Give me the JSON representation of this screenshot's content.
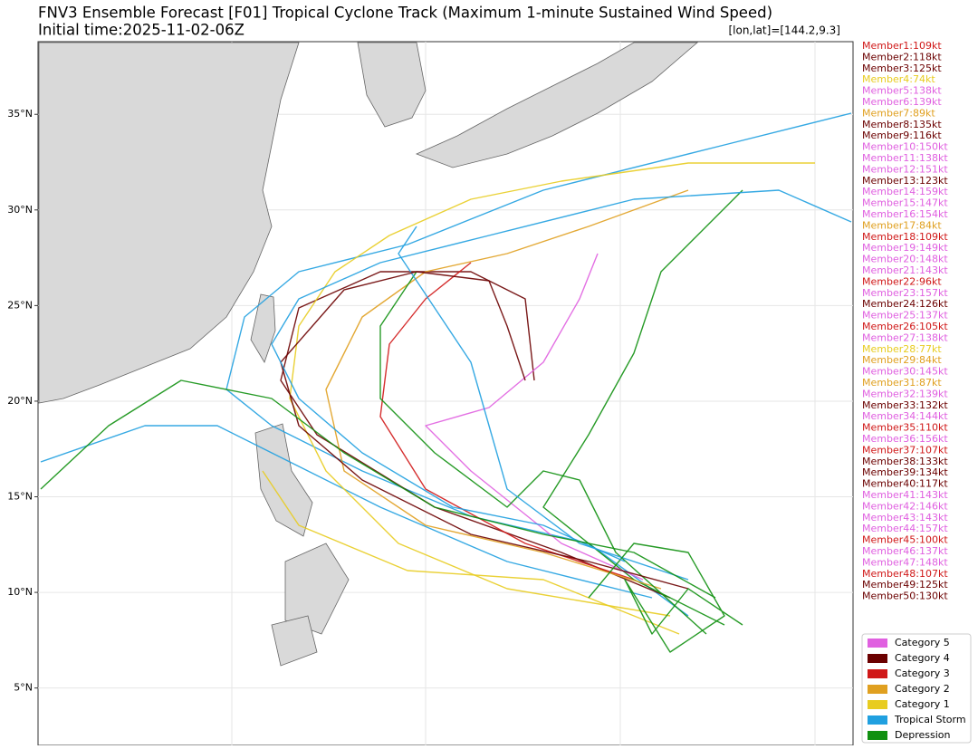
{
  "chart_data": {
    "type": "track-map",
    "title": "FNV3 Ensemble Forecast [F01] Tropical Cyclone Track (Maximum 1-minute Sustained Wind Speed)",
    "subtitle": "Initial time:2025-11-02-06Z",
    "annotation": "[lon,lat]=[144.2,9.3]",
    "ylim": [
      2.0,
      38.8
    ],
    "yticks": [
      {
        "value": 5,
        "label": "5°N"
      },
      {
        "value": 10,
        "label": "10°N"
      },
      {
        "value": 15,
        "label": "15°N"
      },
      {
        "value": 20,
        "label": "20°N"
      },
      {
        "value": 25,
        "label": "25°N"
      },
      {
        "value": 30,
        "label": "30°N"
      },
      {
        "value": 35,
        "label": "35°N"
      }
    ],
    "grid": true,
    "members": [
      {
        "label": "Member1:109kt",
        "color": "#d01818"
      },
      {
        "label": "Member2:118kt",
        "color": "#6b0000"
      },
      {
        "label": "Member3:125kt",
        "color": "#6b0000"
      },
      {
        "label": "Member4:74kt",
        "color": "#e8cc20"
      },
      {
        "label": "Member5:138kt",
        "color": "#e060e0"
      },
      {
        "label": "Member6:139kt",
        "color": "#e060e0"
      },
      {
        "label": "Member7:89kt",
        "color": "#e0a020"
      },
      {
        "label": "Member8:135kt",
        "color": "#6b0000"
      },
      {
        "label": "Member9:116kt",
        "color": "#6b0000"
      },
      {
        "label": "Member10:150kt",
        "color": "#e060e0"
      },
      {
        "label": "Member11:138kt",
        "color": "#e060e0"
      },
      {
        "label": "Member12:151kt",
        "color": "#e060e0"
      },
      {
        "label": "Member13:123kt",
        "color": "#6b0000"
      },
      {
        "label": "Member14:159kt",
        "color": "#e060e0"
      },
      {
        "label": "Member15:147kt",
        "color": "#e060e0"
      },
      {
        "label": "Member16:154kt",
        "color": "#e060e0"
      },
      {
        "label": "Member17:84kt",
        "color": "#e0a020"
      },
      {
        "label": "Member18:109kt",
        "color": "#d01818"
      },
      {
        "label": "Member19:149kt",
        "color": "#e060e0"
      },
      {
        "label": "Member20:148kt",
        "color": "#e060e0"
      },
      {
        "label": "Member21:143kt",
        "color": "#e060e0"
      },
      {
        "label": "Member22:96kt",
        "color": "#d01818"
      },
      {
        "label": "Member23:157kt",
        "color": "#e060e0"
      },
      {
        "label": "Member24:126kt",
        "color": "#6b0000"
      },
      {
        "label": "Member25:137kt",
        "color": "#e060e0"
      },
      {
        "label": "Member26:105kt",
        "color": "#d01818"
      },
      {
        "label": "Member27:138kt",
        "color": "#e060e0"
      },
      {
        "label": "Member28:77kt",
        "color": "#e8cc20"
      },
      {
        "label": "Member29:84kt",
        "color": "#e0a020"
      },
      {
        "label": "Member30:145kt",
        "color": "#e060e0"
      },
      {
        "label": "Member31:87kt",
        "color": "#e0a020"
      },
      {
        "label": "Member32:139kt",
        "color": "#e060e0"
      },
      {
        "label": "Member33:132kt",
        "color": "#6b0000"
      },
      {
        "label": "Member34:144kt",
        "color": "#e060e0"
      },
      {
        "label": "Member35:110kt",
        "color": "#d01818"
      },
      {
        "label": "Member36:156kt",
        "color": "#e060e0"
      },
      {
        "label": "Member37:107kt",
        "color": "#d01818"
      },
      {
        "label": "Member38:133kt",
        "color": "#6b0000"
      },
      {
        "label": "Member39:134kt",
        "color": "#6b0000"
      },
      {
        "label": "Member40:117kt",
        "color": "#6b0000"
      },
      {
        "label": "Member41:143kt",
        "color": "#e060e0"
      },
      {
        "label": "Member42:146kt",
        "color": "#e060e0"
      },
      {
        "label": "Member43:143kt",
        "color": "#e060e0"
      },
      {
        "label": "Member44:157kt",
        "color": "#e060e0"
      },
      {
        "label": "Member45:100kt",
        "color": "#d01818"
      },
      {
        "label": "Member46:137kt",
        "color": "#e060e0"
      },
      {
        "label": "Member47:148kt",
        "color": "#e060e0"
      },
      {
        "label": "Member48:107kt",
        "color": "#d01818"
      },
      {
        "label": "Member49:125kt",
        "color": "#6b0000"
      },
      {
        "label": "Member50:130kt",
        "color": "#6b0000"
      }
    ],
    "legend": [
      {
        "name": "Category 5",
        "color": "#e060e0"
      },
      {
        "name": "Category 4",
        "color": "#6b0000"
      },
      {
        "name": "Category 3",
        "color": "#d01818"
      },
      {
        "name": "Category 2",
        "color": "#e0a020"
      },
      {
        "name": "Category 1",
        "color": "#e8cc20"
      },
      {
        "name": "Tropical Storm",
        "color": "#20a0e0"
      },
      {
        "name": "Depression",
        "color": "#109010"
      }
    ]
  }
}
